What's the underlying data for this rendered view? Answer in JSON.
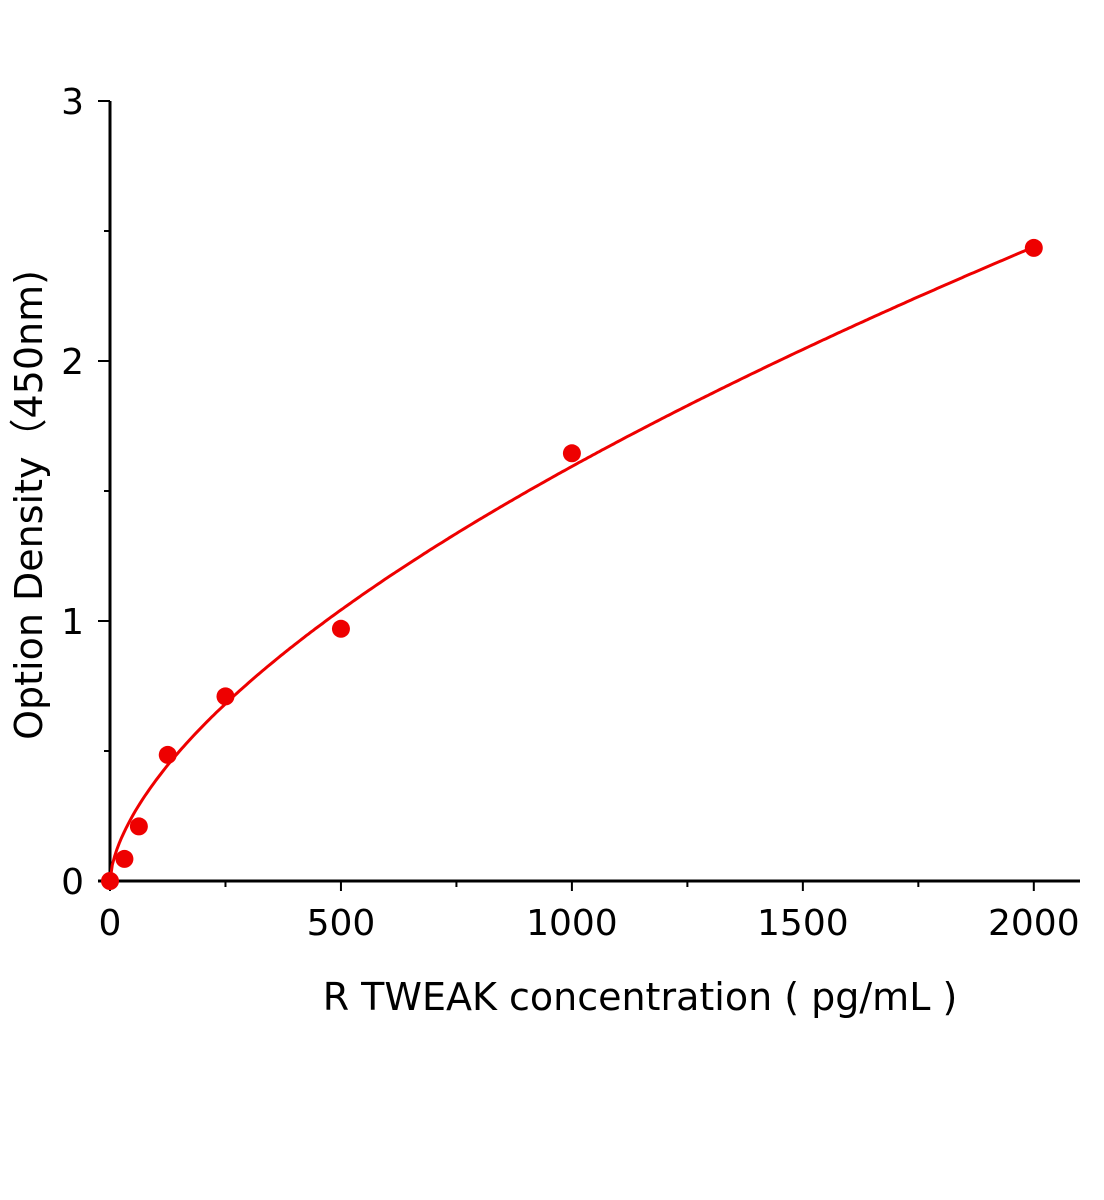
{
  "chart_data": {
    "type": "scatter",
    "title": "",
    "xlabel": "R TWEAK concentration ( pg/mL )",
    "ylabel": "Option Density（450nm)",
    "xlim": [
      0,
      2100
    ],
    "ylim": [
      0,
      3
    ],
    "x_ticks": [
      0,
      500,
      1000,
      1500,
      2000
    ],
    "x_minor_ticks": [
      250,
      750,
      1250,
      1750
    ],
    "y_ticks": [
      0,
      1,
      2,
      3
    ],
    "y_minor_ticks": [
      0.5,
      1.5,
      2.5
    ],
    "grid": false,
    "color": "#ee0000",
    "points": {
      "x": [
        0,
        31.25,
        62.5,
        125,
        250,
        500,
        1000,
        2000
      ],
      "y": [
        0.0,
        0.085,
        0.21,
        0.485,
        0.71,
        0.97,
        1.645,
        2.435
      ]
    },
    "fit_curve": {
      "model": "power",
      "a": 0.0231,
      "b": 0.613,
      "x_range": [
        0,
        2000
      ]
    }
  }
}
